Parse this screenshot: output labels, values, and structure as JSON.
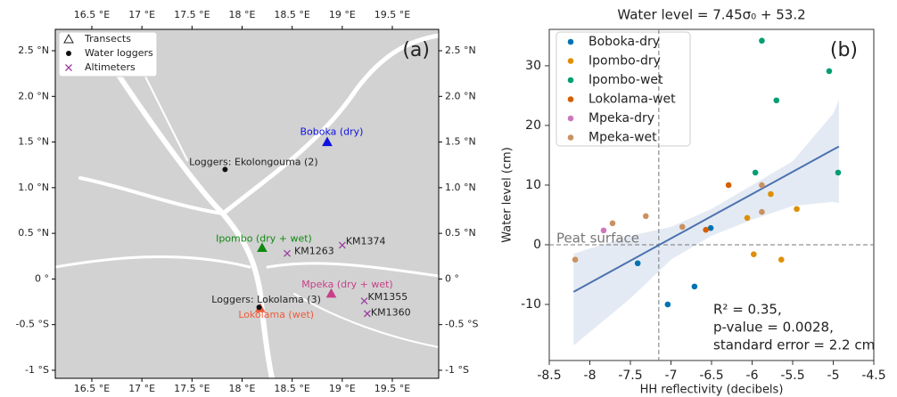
{
  "chart_data": [
    {
      "type": "map",
      "panel": "(a)",
      "xlim": [
        16.135,
        19.963
      ],
      "ylim": [
        -1.088,
        2.734
      ],
      "xticks": [
        {
          "value": 16.5,
          "label": "16.5 °E"
        },
        {
          "value": 17,
          "label": "17 °E"
        },
        {
          "value": 17.5,
          "label": "17.5 °E"
        },
        {
          "value": 18,
          "label": "18 °E"
        },
        {
          "value": 18.5,
          "label": "18.5 °E"
        },
        {
          "value": 19,
          "label": "19 °E"
        },
        {
          "value": 19.5,
          "label": "19.5 °E"
        }
      ],
      "yticks": [
        {
          "value": 2.5,
          "label": "2.5 °N"
        },
        {
          "value": 2,
          "label": "2.0 °N"
        },
        {
          "value": 1.5,
          "label": "1.5 °N"
        },
        {
          "value": 1,
          "label": "1.0 °N"
        },
        {
          "value": 0.5,
          "label": "0.5 °N"
        },
        {
          "value": 0,
          "label": "0 °"
        },
        {
          "value": -0.5,
          "label": "-0.5 °S"
        },
        {
          "value": -1,
          "label": "-1 °S"
        }
      ],
      "legend": [
        {
          "label": "Transects",
          "marker": "triangle-open"
        },
        {
          "label": "Water loggers",
          "marker": "dot"
        },
        {
          "label": "Altimeters",
          "marker": "cross"
        }
      ],
      "sites": [
        {
          "label": "Boboka (dry)",
          "x": 18.85,
          "y": 1.5,
          "marker": "triangle",
          "color": "#1010e0"
        },
        {
          "label": "Ipombo (dry + wet)",
          "x": 18.2,
          "y": 0.34,
          "marker": "triangle",
          "color": "#108a10"
        },
        {
          "label": "Mpeka (dry + wet)",
          "x": 18.89,
          "y": -0.16,
          "marker": "triangle",
          "color": "#c8408a"
        },
        {
          "label": "Lokolama (wet)",
          "x": 18.18,
          "y": -0.32,
          "marker": "triangle",
          "color": "#f05a3a"
        },
        {
          "label": "Loggers: Ekolongouma (2)",
          "x": 17.83,
          "y": 1.2,
          "marker": "dot",
          "color": "#111111"
        },
        {
          "label": "Loggers: Lokolama (3)",
          "x": 18.17,
          "y": -0.31,
          "marker": "dot",
          "color": "#111111"
        },
        {
          "label": "KM1374",
          "x": 19.0,
          "y": 0.37,
          "marker": "cross",
          "color": "#9b3fa0"
        },
        {
          "label": "KM1263",
          "x": 18.45,
          "y": 0.28,
          "marker": "cross",
          "color": "#9b3fa0"
        },
        {
          "label": "KM1355",
          "x": 19.22,
          "y": -0.24,
          "marker": "cross",
          "color": "#9b3fa0"
        },
        {
          "label": "KM1360",
          "x": 19.25,
          "y": -0.38,
          "marker": "cross",
          "color": "#9b3fa0"
        }
      ]
    },
    {
      "type": "scatter",
      "panel": "(b)",
      "title": "Water level = 7.45σ₀ + 53.2",
      "x_label": "HH reflectivity (decibels)",
      "y_label": "Water level (cm)",
      "xlim": [
        -8.5,
        -4.5
      ],
      "ylim": [
        -19.4,
        36.1
      ],
      "xticks": [
        -8.5,
        -8,
        -7.5,
        -7,
        -6.5,
        -6,
        -5.5,
        -5,
        -4.5
      ],
      "yticks": [
        -10,
        0,
        10,
        20,
        30
      ],
      "vline": -7.15,
      "hline": 0,
      "hline_label": "Peat surface",
      "annotations": [
        "R² = 0.35,",
        "p-value = 0.0028,",
        "standard error = 2.2 cm"
      ],
      "series": [
        {
          "name": "Boboka-dry",
          "color": "#0173b2",
          "x": [
            -6.51,
            -7.41,
            -6.71,
            -7.04
          ],
          "values": [
            2.8,
            -3.1,
            -7.0,
            -10.0
          ]
        },
        {
          "name": "Ipombo-dry",
          "color": "#de8f05",
          "x": [
            -5.77,
            -6.06,
            -5.45,
            -5.98,
            -5.64
          ],
          "values": [
            8.5,
            4.5,
            6.0,
            -1.6,
            -2.5
          ]
        },
        {
          "name": "Ipombo-wet",
          "color": "#029e73",
          "x": [
            -5.88,
            -5.05,
            -5.7,
            -5.96,
            -4.94
          ],
          "values": [
            34.2,
            29.1,
            24.2,
            12.1,
            12.1
          ]
        },
        {
          "name": "Lokolama-wet",
          "color": "#d55e00",
          "x": [
            -6.29,
            -6.57
          ],
          "values": [
            10.0,
            2.5
          ]
        },
        {
          "name": "Mpeka-dry",
          "color": "#cc78bc",
          "x": [
            -7.83
          ],
          "values": [
            2.4
          ]
        },
        {
          "name": "Mpeka-wet",
          "color": "#ca9161",
          "x": [
            -8.18,
            -7.72,
            -7.31,
            -6.86,
            -5.88,
            -5.88
          ],
          "values": [
            -2.5,
            3.6,
            4.8,
            3.0,
            10.0,
            5.5
          ]
        }
      ],
      "fit": {
        "color": "#4c72b0",
        "x": [
          -8.2,
          -7.5,
          -7,
          -6.5,
          -6,
          -5.5,
          -5,
          -4.93
        ],
        "values": [
          -7.89,
          -2.68,
          1.05,
          4.78,
          8.5,
          12.23,
          15.95,
          16.47
        ],
        "lower": [
          -16.9,
          -9,
          -2.5,
          1.5,
          4.2,
          6.5,
          7.2,
          7.0
        ],
        "upper": [
          -1.5,
          1.5,
          3,
          6,
          10,
          14,
          22,
          24.3
        ]
      }
    }
  ]
}
